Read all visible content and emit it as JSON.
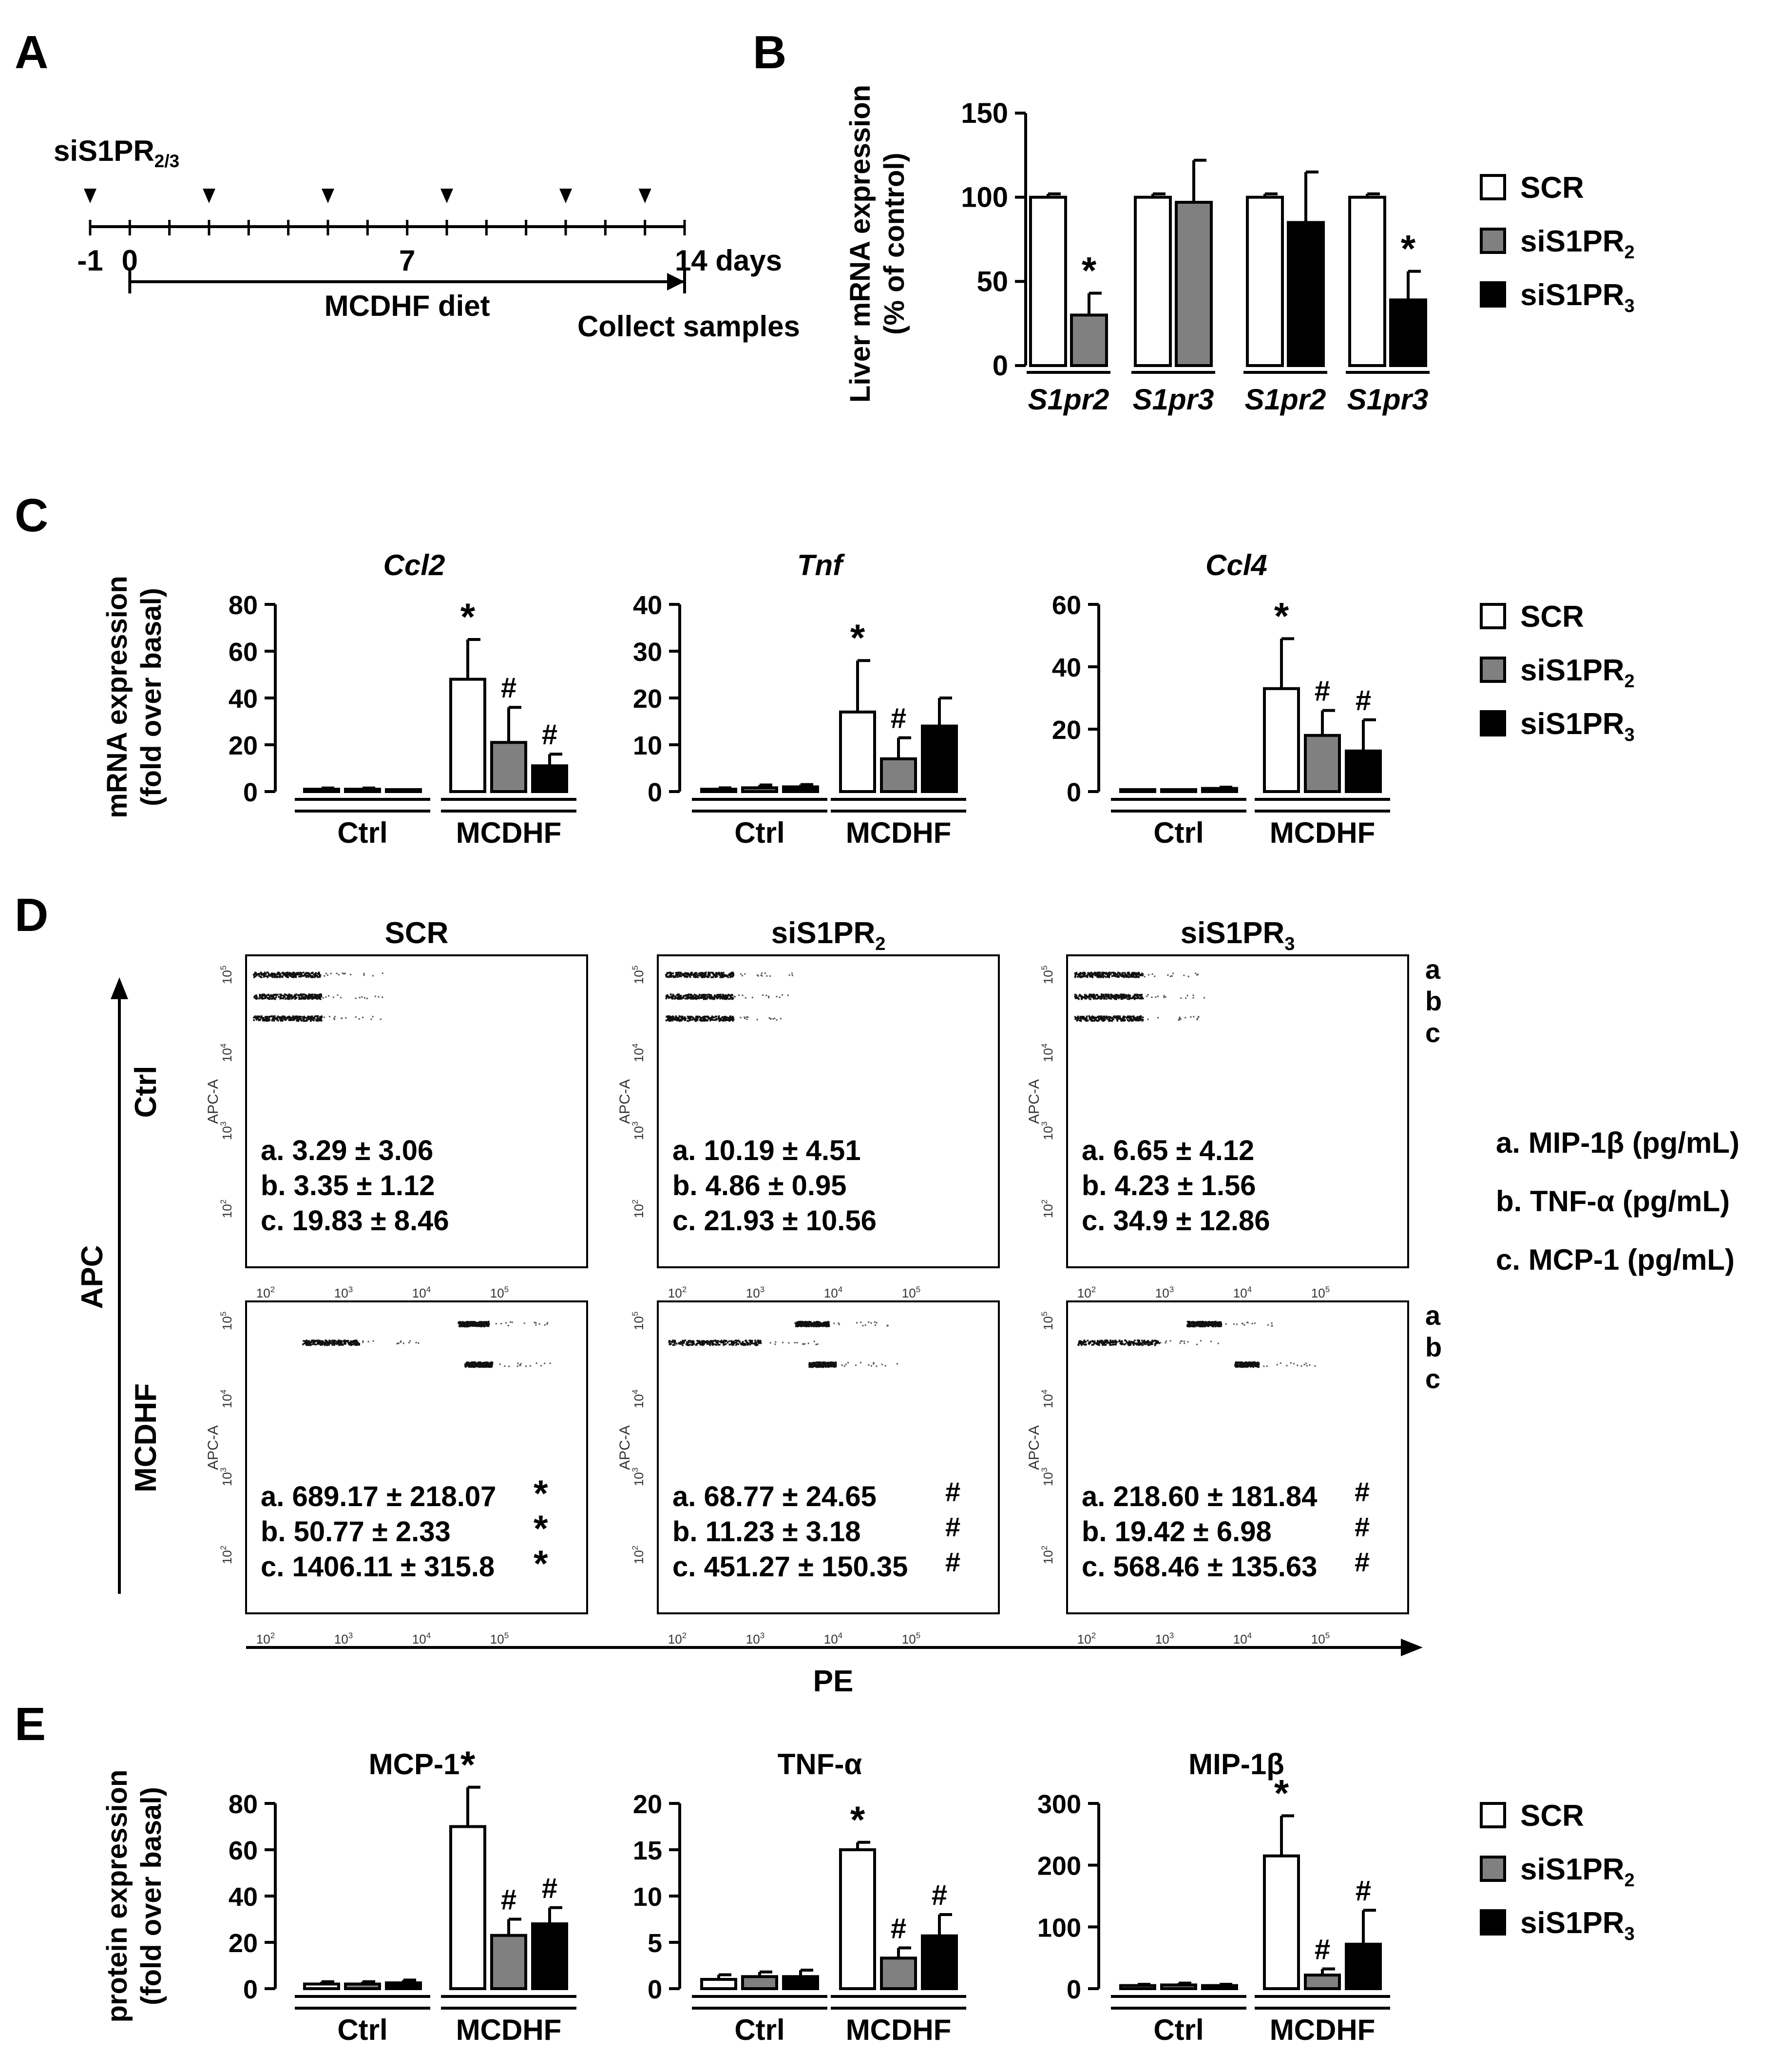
{
  "panel_labels": [
    "A",
    "B",
    "C",
    "D",
    "E"
  ],
  "colors": {
    "scr": "#ffffff",
    "si2": "#808080",
    "si3": "#000000",
    "ink": "#000000"
  },
  "legend_entries": [
    {
      "key": "scr",
      "main": "SCR",
      "sub": ""
    },
    {
      "key": "si2",
      "main": "siS1PR",
      "sub": "2"
    },
    {
      "key": "si3",
      "main": "siS1PR",
      "sub": "3"
    }
  ],
  "timeline": {
    "sirna_main": "siS1PR",
    "sirna_sub": "2/3",
    "ticks": [
      -1,
      0,
      1,
      2,
      3,
      4,
      5,
      6,
      7,
      8,
      9,
      10,
      11,
      12,
      13,
      14
    ],
    "labeled_ticks": [
      "-1",
      "0",
      "7",
      "14 days"
    ],
    "injection_days": [
      -1,
      2,
      5,
      8,
      11,
      13
    ],
    "diet_label": "MCDHF diet",
    "collect_label": "Collect samples"
  },
  "chart_data": [
    {
      "id": "B",
      "type": "bar",
      "title": "",
      "ylabel": [
        "Liver mRNA expression",
        "(% of control)"
      ],
      "ylim": [
        0,
        150
      ],
      "yticks": [
        0,
        50,
        100,
        150
      ],
      "groups": [
        {
          "label": "S1pr2",
          "bars": [
            {
              "series": "scr",
              "value": 100,
              "err": 2
            },
            {
              "series": "si2",
              "value": 30,
              "err": 13,
              "mark": "*"
            }
          ]
        },
        {
          "label": "S1pr3",
          "bars": [
            {
              "series": "scr",
              "value": 100,
              "err": 2
            },
            {
              "series": "si2",
              "value": 97,
              "err": 25
            }
          ]
        },
        {
          "label": "S1pr2",
          "bars": [
            {
              "series": "scr",
              "value": 100,
              "err": 2
            },
            {
              "series": "si3",
              "value": 85,
              "err": 30
            }
          ]
        },
        {
          "label": "S1pr3",
          "bars": [
            {
              "series": "scr",
              "value": 100,
              "err": 2
            },
            {
              "series": "si3",
              "value": 39,
              "err": 17,
              "mark": "*"
            }
          ]
        }
      ]
    },
    {
      "id": "C1",
      "type": "bar",
      "title": "Ccl2",
      "ylabel": [
        "mRNA expression",
        "(fold over basal)"
      ],
      "ylim": [
        0,
        80
      ],
      "yticks": [
        0,
        20,
        40,
        60,
        80
      ],
      "groups": [
        {
          "label": "Ctrl",
          "bars": [
            {
              "series": "scr",
              "value": 1,
              "err": 0.5
            },
            {
              "series": "si2",
              "value": 1,
              "err": 0.5
            },
            {
              "series": "si3",
              "value": 0.5,
              "err": 0.3
            }
          ]
        },
        {
          "label": "MCDHF",
          "bars": [
            {
              "series": "scr",
              "value": 48,
              "err": 17,
              "mark": "*"
            },
            {
              "series": "si2",
              "value": 21,
              "err": 15,
              "mark": "#"
            },
            {
              "series": "si3",
              "value": 11,
              "err": 5,
              "mark": "#"
            }
          ]
        }
      ]
    },
    {
      "id": "C2",
      "type": "bar",
      "title": "Tnf",
      "ylabel": [],
      "ylim": [
        0,
        40
      ],
      "yticks": [
        0,
        10,
        20,
        30,
        40
      ],
      "groups": [
        {
          "label": "Ctrl",
          "bars": [
            {
              "series": "scr",
              "value": 0.5,
              "err": 0.3
            },
            {
              "series": "si2",
              "value": 0.8,
              "err": 0.6
            },
            {
              "series": "si3",
              "value": 1,
              "err": 0.5
            }
          ]
        },
        {
          "label": "MCDHF",
          "bars": [
            {
              "series": "scr",
              "value": 17,
              "err": 11,
              "mark": "*"
            },
            {
              "series": "si2",
              "value": 7,
              "err": 4.5,
              "mark": "#"
            },
            {
              "series": "si3",
              "value": 14,
              "err": 6
            }
          ]
        }
      ]
    },
    {
      "id": "C3",
      "type": "bar",
      "title": "Ccl4",
      "ylabel": [],
      "ylim": [
        0,
        60
      ],
      "yticks": [
        0,
        20,
        40,
        60
      ],
      "groups": [
        {
          "label": "Ctrl",
          "bars": [
            {
              "series": "scr",
              "value": 0.3,
              "err": 0.3
            },
            {
              "series": "si2",
              "value": 0.3,
              "err": 0.3
            },
            {
              "series": "si3",
              "value": 1,
              "err": 0.4
            }
          ]
        },
        {
          "label": "MCDHF",
          "bars": [
            {
              "series": "scr",
              "value": 33,
              "err": 16,
              "mark": "*"
            },
            {
              "series": "si2",
              "value": 18,
              "err": 8,
              "mark": "#"
            },
            {
              "series": "si3",
              "value": 13,
              "err": 10,
              "mark": "#"
            }
          ]
        }
      ]
    },
    {
      "id": "E1",
      "type": "bar",
      "title": "MCP-1",
      "ylabel": [
        "protein expression",
        "(fold over basal)"
      ],
      "ylim": [
        0,
        80
      ],
      "yticks": [
        0,
        20,
        40,
        60,
        80
      ],
      "groups": [
        {
          "label": "Ctrl",
          "bars": [
            {
              "series": "scr",
              "value": 2,
              "err": 1
            },
            {
              "series": "si2",
              "value": 2,
              "err": 1
            },
            {
              "series": "si3",
              "value": 2.5,
              "err": 1.2
            }
          ]
        },
        {
          "label": "MCDHF",
          "bars": [
            {
              "series": "scr",
              "value": 70,
              "err": 17,
              "mark": "*"
            },
            {
              "series": "si2",
              "value": 23,
              "err": 7,
              "mark": "#"
            },
            {
              "series": "si3",
              "value": 28,
              "err": 7,
              "mark": "#"
            }
          ]
        }
      ]
    },
    {
      "id": "E2",
      "type": "bar",
      "title": "TNF-α",
      "ylabel": [],
      "ylim": [
        0,
        20
      ],
      "yticks": [
        0,
        5,
        10,
        15,
        20
      ],
      "groups": [
        {
          "label": "Ctrl",
          "bars": [
            {
              "series": "scr",
              "value": 1,
              "err": 0.5
            },
            {
              "series": "si2",
              "value": 1.3,
              "err": 0.5
            },
            {
              "series": "si3",
              "value": 1.3,
              "err": 0.7
            }
          ]
        },
        {
          "label": "MCDHF",
          "bars": [
            {
              "series": "scr",
              "value": 15,
              "err": 0.8,
              "mark": "*"
            },
            {
              "series": "si2",
              "value": 3.3,
              "err": 1.1,
              "mark": "#"
            },
            {
              "series": "si3",
              "value": 5.7,
              "err": 2.3,
              "mark": "#"
            }
          ]
        }
      ]
    },
    {
      "id": "E3",
      "type": "bar",
      "title": "MIP-1β",
      "ylabel": [],
      "ylim": [
        0,
        300
      ],
      "yticks": [
        0,
        100,
        200,
        300
      ],
      "groups": [
        {
          "label": "Ctrl",
          "bars": [
            {
              "series": "scr",
              "value": 5,
              "err": 2
            },
            {
              "series": "si2",
              "value": 6,
              "err": 3
            },
            {
              "series": "si3",
              "value": 5,
              "err": 2
            }
          ]
        },
        {
          "label": "MCDHF",
          "bars": [
            {
              "series": "scr",
              "value": 215,
              "err": 65,
              "mark": "*"
            },
            {
              "series": "si2",
              "value": 22,
              "err": 10,
              "mark": "#"
            },
            {
              "series": "si3",
              "value": 72,
              "err": 55,
              "mark": "#"
            }
          ]
        }
      ]
    }
  ],
  "flow": {
    "y_axis_title": "APC",
    "x_axis_title": "PE",
    "axis_label": "APC-A",
    "tick_mantissa": "10",
    "tick_exponents": [
      "2",
      "3",
      "4",
      "5"
    ],
    "row_labels": [
      "Ctrl",
      "MCDHF"
    ],
    "column_labels": [
      {
        "main": "SCR",
        "sub": ""
      },
      {
        "main": "siS1PR",
        "sub": "2"
      },
      {
        "main": "siS1PR",
        "sub": "3"
      }
    ],
    "bead_letters": [
      "a",
      "b",
      "c"
    ],
    "legend": [
      "a. MIP-1β (pg/mL)",
      "b. TNF-α (pg/mL)",
      "c. MCP-1 (pg/mL)"
    ],
    "stats": [
      [
        [
          {
            "text": "a. 3.29 ± 3.06",
            "mark": ""
          },
          {
            "text": "b. 3.35 ± 1.12",
            "mark": ""
          },
          {
            "text": "c. 19.83 ±  8.46",
            "mark": ""
          }
        ],
        [
          {
            "text": "a. 10.19 ± 4.51",
            "mark": ""
          },
          {
            "text": "b. 4.86 ± 0.95",
            "mark": ""
          },
          {
            "text": "c. 21.93 ± 10.56",
            "mark": ""
          }
        ],
        [
          {
            "text": "a. 6.65 ± 4.12",
            "mark": ""
          },
          {
            "text": "b. 4.23 ± 1.56",
            "mark": ""
          },
          {
            "text": "c. 34.9 ± 12.86",
            "mark": ""
          }
        ]
      ],
      [
        [
          {
            "text": "a. 689.17 ± 218.07",
            "mark": "*"
          },
          {
            "text": "b. 50.77 ± 2.33",
            "mark": "*"
          },
          {
            "text": "c. 1406.11  ± 315.8",
            "mark": "*"
          }
        ],
        [
          {
            "text": "a. 68.77 ± 24.65",
            "mark": "#"
          },
          {
            "text": "b. 11.23 ± 3.18",
            "mark": "#"
          },
          {
            "text": "c. 451.27 ± 150.35",
            "mark": "#"
          }
        ],
        [
          {
            "text": "a. 218.60 ± 181.84",
            "mark": "#"
          },
          {
            "text": "b. 19.42 ± 6.98",
            "mark": "#"
          },
          {
            "text": "c. 568.46 ± 135.63",
            "mark": "#"
          }
        ]
      ]
    ]
  }
}
